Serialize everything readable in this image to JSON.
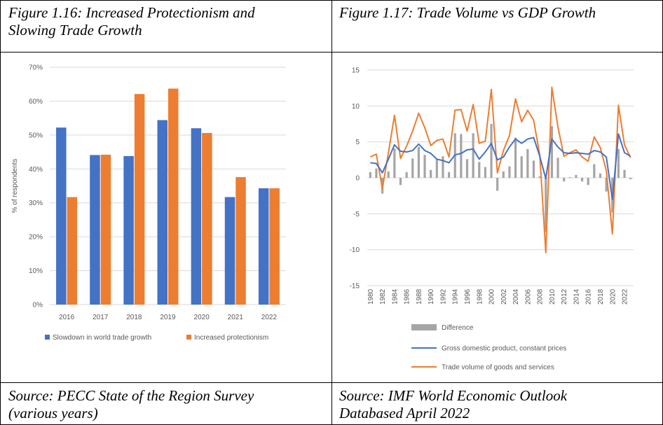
{
  "left": {
    "title": "Figure 1.16: Increased Protectionism and\nSlowing Trade Growth",
    "source": "Source: PECC State of the Region Survey\n(various years)"
  },
  "right": {
    "title": "Figure 1.17: Trade Volume vs GDP Growth",
    "source": "Source: IMF World Economic Outlook\nDatabased April 2022"
  },
  "colors": {
    "blue": "#4472C4",
    "orange": "#ED7D31",
    "gray": "#A5A5A5"
  },
  "chart_data": [
    {
      "type": "bar",
      "ylabel": "% of respondents",
      "ylim": [
        0,
        70
      ],
      "yticks": [
        "0%",
        "10%",
        "20%",
        "30%",
        "40%",
        "50%",
        "60%",
        "70%"
      ],
      "categories": [
        "2016",
        "2017",
        "2018",
        "2019",
        "2020",
        "2021",
        "2022"
      ],
      "series": [
        {
          "name": "Slowdown in world trade growth",
          "color": "#4472C4",
          "values": [
            52.2,
            44.1,
            43.8,
            54.4,
            52.0,
            31.7,
            34.3
          ]
        },
        {
          "name": "Increased protectionism",
          "color": "#ED7D31",
          "values": [
            31.7,
            44.2,
            62.1,
            63.7,
            50.6,
            37.6,
            34.3
          ]
        }
      ],
      "legend": "bottom",
      "grid": true
    },
    {
      "type": "line",
      "ylim": [
        -15,
        15
      ],
      "yticks": [
        "15",
        "10",
        "5",
        "0",
        "-5",
        "-10",
        "-15"
      ],
      "x": [
        "1980",
        "1981",
        "1982",
        "1983",
        "1984",
        "1985",
        "1986",
        "1987",
        "1988",
        "1989",
        "1990",
        "1991",
        "1992",
        "1993",
        "1994",
        "1995",
        "1996",
        "1997",
        "1998",
        "1999",
        "2000",
        "2001",
        "2002",
        "2003",
        "2004",
        "2005",
        "2006",
        "2007",
        "2008",
        "2009",
        "2010",
        "2011",
        "2012",
        "2013",
        "2014",
        "2015",
        "2016",
        "2017",
        "2018",
        "2019",
        "2020",
        "2021",
        "2022",
        "2023"
      ],
      "xticklabels": [
        "1980",
        "1982",
        "1984",
        "1986",
        "1988",
        "1990",
        "1992",
        "1994",
        "1996",
        "1998",
        "2000",
        "2002",
        "2004",
        "2006",
        "2008",
        "2010",
        "2012",
        "2014",
        "2016",
        "2018",
        "2020",
        "2022"
      ],
      "series": [
        {
          "name": "Difference",
          "kind": "bar",
          "color": "#A5A5A5",
          "values": [
            0.8,
            1.3,
            -2.2,
            0.9,
            4.1,
            -1.0,
            0.8,
            2.7,
            4.3,
            3.2,
            1.1,
            2.6,
            3.0,
            0.8,
            6.2,
            6.1,
            2.6,
            6.2,
            2.2,
            1.5,
            7.5,
            -1.8,
            0.9,
            1.6,
            5.6,
            3.0,
            4.0,
            2.4,
            0.2,
            -7.5,
            7.2,
            2.8,
            -0.5,
            0.1,
            0.4,
            -0.5,
            -1.0,
            1.9,
            0.6,
            -1.9,
            -4.8,
            4.0,
            1.1,
            -0.2
          ]
        },
        {
          "name": "Gross domestic product, constant prices",
          "kind": "line",
          "color": "#4472C4",
          "values": [
            2.1,
            2.0,
            0.7,
            2.6,
            4.6,
            3.7,
            3.6,
            3.8,
            4.7,
            3.8,
            3.4,
            2.6,
            2.4,
            2.1,
            3.2,
            3.4,
            3.9,
            4.0,
            2.6,
            3.6,
            4.8,
            2.5,
            2.9,
            4.3,
            5.4,
            4.8,
            5.4,
            5.6,
            3.0,
            -0.1,
            5.4,
            4.3,
            3.5,
            3.4,
            3.5,
            3.4,
            3.3,
            3.8,
            3.6,
            2.9,
            -3.0,
            6.1,
            3.5,
            3.0
          ]
        },
        {
          "name": "Trade volume of goods and services",
          "kind": "line",
          "color": "#ED7D31",
          "values": [
            2.9,
            3.3,
            -1.5,
            3.5,
            8.7,
            2.7,
            4.4,
            6.5,
            9.0,
            7.0,
            4.5,
            5.2,
            5.4,
            2.9,
            9.4,
            9.5,
            6.5,
            10.2,
            4.8,
            5.1,
            12.3,
            0.7,
            3.8,
            5.9,
            11.0,
            7.8,
            9.4,
            8.0,
            3.2,
            -10.4,
            12.6,
            7.1,
            3.0,
            3.5,
            3.9,
            2.9,
            2.3,
            5.7,
            4.2,
            1.0,
            -7.8,
            10.1,
            4.6,
            2.8
          ]
        }
      ],
      "legend": "bottom",
      "grid": true
    }
  ]
}
